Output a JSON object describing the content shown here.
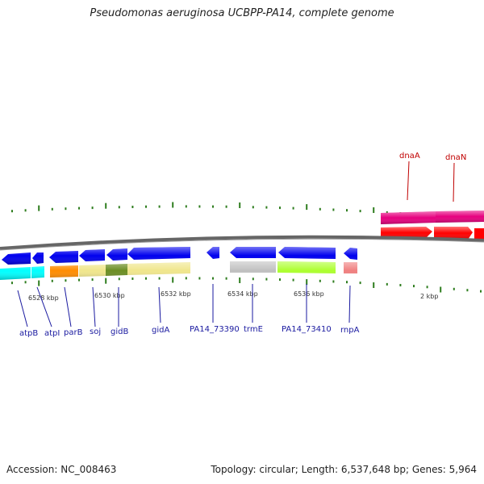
{
  "header": {
    "title": "Pseudomonas aeruginosa UCBPP-PA14, complete genome"
  },
  "footer": {
    "accession": "Accession: NC_008463",
    "topology": "Topology: circular; Length: 6,537,648 bp; Genes: 5,964"
  },
  "colors": {
    "forward_gene": "#e6007e",
    "forward_cds": "#ff0000",
    "reverse_gene": "#0000ee",
    "backbone": "#666666",
    "tick": "#2e7d1e",
    "label_reverse": "#1a1aa0",
    "label_forward": "#c00000"
  },
  "scale_labels": [
    "6528 kbp",
    "6530 kbp",
    "6532 kbp",
    "6534 kbp",
    "6536 kbp",
    "2 kbp"
  ],
  "genes_reverse": [
    {
      "name": "atpB",
      "color": "#00ffff"
    },
    {
      "name": "atpI",
      "color": "#00ffff"
    },
    {
      "name": "parB",
      "color": "#ff8c00"
    },
    {
      "name": "soj",
      "color": "#f0e68c"
    },
    {
      "name": "gidB",
      "color": "#6b8e23"
    },
    {
      "name": "gidA",
      "color": "#f0e68c"
    },
    {
      "name": "PA14_73390",
      "color": "#ffffff"
    },
    {
      "name": "trmE",
      "color": "#c0c0c0"
    },
    {
      "name": "PA14_73410",
      "color": "#adff2f"
    },
    {
      "name": "rnpA",
      "color": "#f08080"
    }
  ],
  "genes_forward": [
    {
      "name": "dnaA"
    },
    {
      "name": "dnaN"
    }
  ]
}
